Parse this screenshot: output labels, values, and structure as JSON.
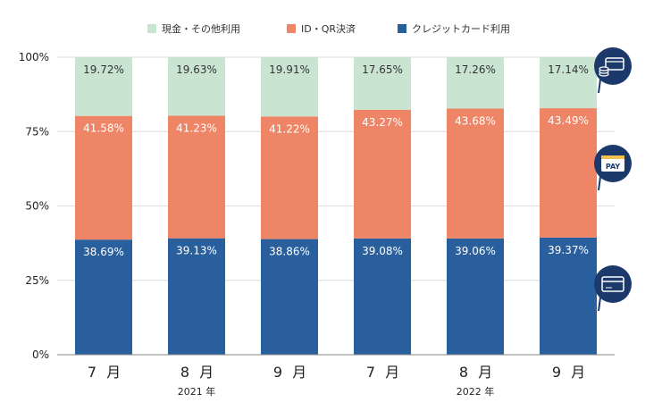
{
  "chart_data": {
    "type": "bar",
    "stacked": true,
    "percent": true,
    "categories": [
      "7 月",
      "8 月",
      "9 月",
      "7 月",
      "8 月",
      "9 月"
    ],
    "year_labels": [
      {
        "text": "2021 年",
        "under_category": 1
      },
      {
        "text": "2022 年",
        "under_category": 4
      }
    ],
    "series": [
      {
        "name": "クレジットカード利用",
        "color": "#2a5f9e",
        "label_color": "#ffffff",
        "icon": "credit-card-icon",
        "values": [
          38.69,
          39.13,
          38.86,
          39.08,
          39.06,
          39.37
        ],
        "labels": [
          "38.69%",
          "39.13%",
          "38.86%",
          "39.08%",
          "39.06%",
          "39.37%"
        ]
      },
      {
        "name": "ID・QR決済",
        "color": "#ed8566",
        "label_color": "#ffffff",
        "icon": "pay-icon",
        "icon_text": "PAY",
        "values": [
          41.58,
          41.23,
          41.22,
          43.27,
          43.68,
          43.49
        ],
        "labels": [
          "41.58%",
          "41.23%",
          "41.22%",
          "43.27%",
          "43.68%",
          "43.49%"
        ]
      },
      {
        "name": "現金・その他利用",
        "color": "#c9e5d2",
        "label_color": "#333333",
        "icon": "cash-card-icon",
        "values": [
          19.72,
          19.63,
          19.91,
          17.65,
          17.26,
          17.14
        ],
        "labels": [
          "19.72%",
          "19.63%",
          "19.91%",
          "17.65%",
          "17.26%",
          "17.14%"
        ]
      }
    ],
    "legend_order": [
      2,
      1,
      0
    ],
    "legend_position": "top",
    "y_ticks": [
      "0%",
      "25%",
      "50%",
      "75%",
      "100%"
    ],
    "ylim": [
      0,
      100
    ],
    "grid": true,
    "title": "",
    "xlabel": "",
    "ylabel": ""
  }
}
